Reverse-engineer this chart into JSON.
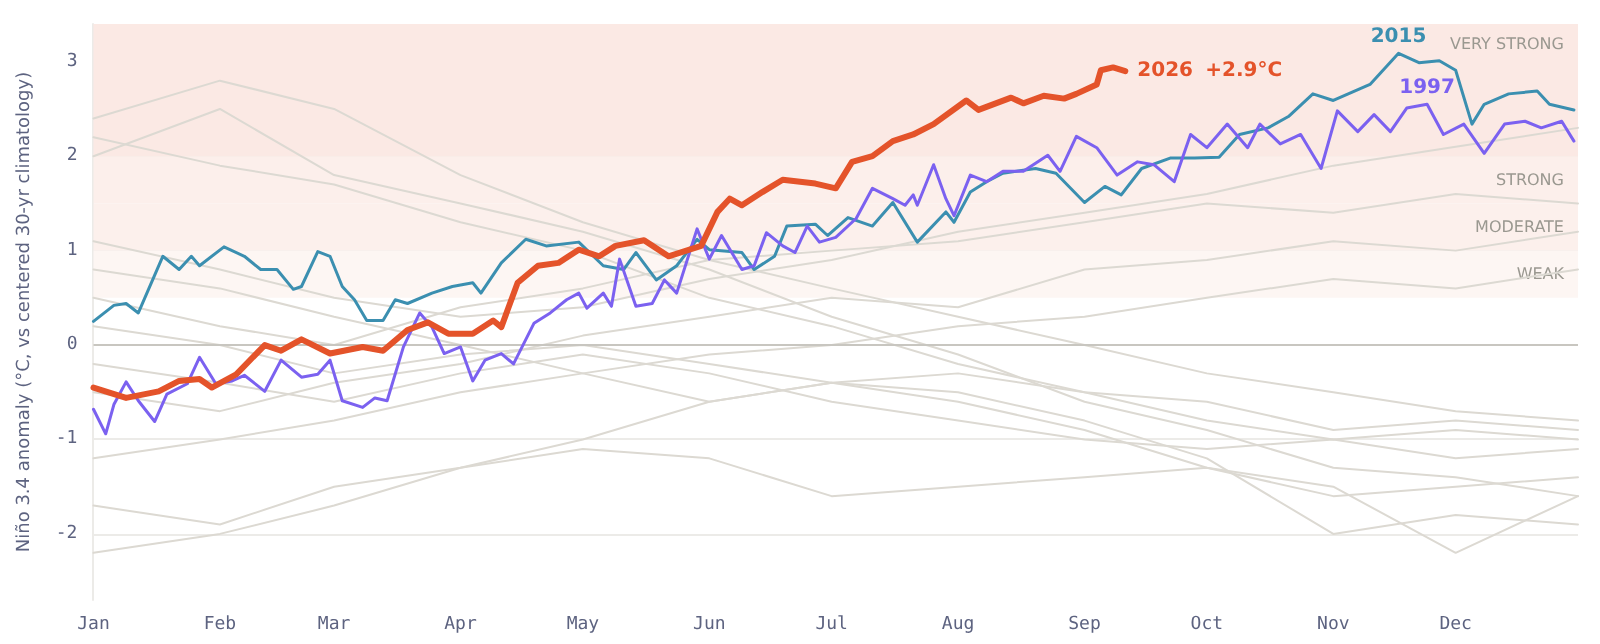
{
  "chart_data": {
    "type": "line",
    "ylabel": "Niño 3.4 anomaly (°C, vs centered 30-yr climatology)",
    "xlim": [
      "--01-01",
      "--12-31"
    ],
    "xticks": [
      {
        "value": "--01-01",
        "label": "Jan"
      },
      {
        "value": "--02-01",
        "label": "Feb"
      },
      {
        "value": "--03-01",
        "label": "Mar"
      },
      {
        "value": "--04-01",
        "label": "Apr"
      },
      {
        "value": "--05-01",
        "label": "May"
      },
      {
        "value": "--06-01",
        "label": "Jun"
      },
      {
        "value": "--07-01",
        "label": "Jul"
      },
      {
        "value": "--08-01",
        "label": "Aug"
      },
      {
        "value": "--09-01",
        "label": "Sep"
      },
      {
        "value": "--10-01",
        "label": "Oct"
      },
      {
        "value": "--11-01",
        "label": "Nov"
      },
      {
        "value": "--12-01",
        "label": "Dec"
      }
    ],
    "ylim": [
      -2.7,
      3.4
    ],
    "yticks": [
      -2,
      -1,
      0,
      1,
      2,
      3
    ],
    "grid": "y",
    "legend": false,
    "marker": "none",
    "line_style": "solid",
    "x": [
      "--01-01",
      "--02-01",
      "--03-01",
      "--04-01",
      "--05-01",
      "--06-01",
      "--07-01",
      "--08-01",
      "--09-01",
      "--10-01",
      "--11-01",
      "--12-01",
      "--12-31"
    ],
    "series": [
      {
        "color": "#dcd9d2",
        "values": [
          2.4,
          2.8,
          2.5,
          1.8,
          1.3,
          0.9,
          0.6,
          0.3,
          0.0,
          -0.3,
          -0.5,
          -0.7,
          -0.8
        ]
      },
      {
        "color": "#dcd9d2",
        "values": [
          2.2,
          1.9,
          1.7,
          1.3,
          1.0,
          0.5,
          0.2,
          -0.2,
          -0.5,
          -0.6,
          -0.9,
          -0.8,
          -0.9
        ]
      },
      {
        "color": "#dcd9d2",
        "values": [
          2.0,
          2.5,
          1.8,
          1.5,
          1.2,
          0.8,
          0.3,
          -0.1,
          -0.6,
          -0.9,
          -1.3,
          -1.4,
          -1.6
        ]
      },
      {
        "color": "#dcd9d2",
        "values": [
          1.1,
          0.8,
          0.5,
          0.3,
          0.4,
          0.7,
          0.9,
          1.2,
          1.4,
          1.6,
          1.9,
          2.1,
          2.3
        ]
      },
      {
        "color": "#dcd9d2",
        "values": [
          0.5,
          0.2,
          0.0,
          0.4,
          0.6,
          0.9,
          1.0,
          1.1,
          1.3,
          1.5,
          1.4,
          1.6,
          1.5
        ]
      },
      {
        "color": "#dcd9d2",
        "values": [
          -0.5,
          -0.7,
          -0.4,
          -0.2,
          0.1,
          0.3,
          0.5,
          0.4,
          0.8,
          0.9,
          1.1,
          1.0,
          1.2
        ]
      },
      {
        "color": "#dcd9d2",
        "values": [
          -1.2,
          -1.0,
          -0.8,
          -0.5,
          -0.3,
          -0.1,
          0.0,
          0.2,
          0.3,
          0.5,
          0.7,
          0.6,
          0.8
        ]
      },
      {
        "color": "#dcd9d2",
        "values": [
          -0.2,
          -0.4,
          -0.6,
          -0.3,
          -0.1,
          -0.3,
          -0.6,
          -0.8,
          -1.0,
          -1.1,
          -1.0,
          -1.2,
          -1.1
        ]
      },
      {
        "color": "#dcd9d2",
        "values": [
          -1.7,
          -1.9,
          -1.5,
          -1.3,
          -1.0,
          -0.6,
          -0.4,
          -0.3,
          -0.5,
          -0.8,
          -1.0,
          -0.9,
          -1.0
        ]
      },
      {
        "color": "#dcd9d2",
        "values": [
          -2.2,
          -2.0,
          -1.7,
          -1.3,
          -1.1,
          -1.2,
          -1.6,
          -1.5,
          -1.4,
          -1.3,
          -1.6,
          -1.5,
          -1.4
        ]
      },
      {
        "color": "#dcd9d2",
        "values": [
          0.2,
          0.0,
          -0.3,
          -0.1,
          0.0,
          -0.2,
          -0.4,
          -0.5,
          -0.8,
          -1.2,
          -2.0,
          -1.8,
          -1.9
        ]
      },
      {
        "color": "#dcd9d2",
        "values": [
          0.8,
          0.6,
          0.3,
          0.0,
          -0.3,
          -0.6,
          -0.4,
          -0.6,
          -0.9,
          -1.3,
          -1.5,
          -2.2,
          -1.6
        ]
      },
      {
        "name": "2015",
        "color": "#3b8fb0",
        "x": [
          "--01-01",
          "--01-06",
          "--01-09",
          "--01-12",
          "--01-18",
          "--01-22",
          "--01-25",
          "--01-27",
          "--02-02",
          "--02-07",
          "--02-11",
          "--02-15",
          "--02-19",
          "--02-21",
          "--02-25",
          "--02-28",
          "--03-03",
          "--03-06",
          "--03-09",
          "--03-13",
          "--03-16",
          "--03-19",
          "--03-25",
          "--03-30",
          "--04-04",
          "--04-06",
          "--04-11",
          "--04-17",
          "--04-22",
          "--04-30",
          "--05-06",
          "--05-11",
          "--05-14",
          "--05-19",
          "--05-24",
          "--05-29",
          "--06-01",
          "--06-09",
          "--06-12",
          "--06-17",
          "--06-20",
          "--06-27",
          "--06-30",
          "--07-05",
          "--07-11",
          "--07-16",
          "--07-22",
          "--07-29",
          "--07-31",
          "--08-04",
          "--08-08",
          "--08-12",
          "--08-20",
          "--08-25",
          "--09-01",
          "--09-06",
          "--09-10",
          "--09-15",
          "--09-22",
          "--09-28",
          "--10-04",
          "--10-09",
          "--10-16",
          "--10-21",
          "--10-27",
          "--11-01",
          "--11-10",
          "--11-17",
          "--11-22",
          "--11-27",
          "--12-01",
          "--12-05",
          "--12-08",
          "--12-14",
          "--12-21",
          "--12-24",
          "--12-30"
        ],
        "values": [
          0.25,
          0.42,
          0.44,
          0.34,
          0.94,
          0.8,
          0.94,
          0.84,
          1.04,
          0.94,
          0.8,
          0.8,
          0.59,
          0.62,
          0.99,
          0.94,
          0.62,
          0.48,
          0.26,
          0.26,
          0.48,
          0.44,
          0.55,
          0.62,
          0.66,
          0.55,
          0.87,
          1.12,
          1.05,
          1.09,
          0.84,
          0.8,
          0.98,
          0.69,
          0.84,
          1.12,
          1.01,
          0.98,
          0.8,
          0.94,
          1.26,
          1.28,
          1.16,
          1.35,
          1.26,
          1.51,
          1.09,
          1.41,
          1.3,
          1.62,
          1.73,
          1.82,
          1.87,
          1.82,
          1.51,
          1.68,
          1.59,
          1.87,
          1.98,
          1.98,
          1.99,
          2.23,
          2.3,
          2.42,
          2.66,
          2.59,
          2.76,
          3.09,
          2.99,
          3.01,
          2.91,
          2.34,
          2.55,
          2.66,
          2.69,
          2.55,
          2.49
        ]
      },
      {
        "name": "1997",
        "color": "#7b61f0",
        "x": [
          "--01-01",
          "--01-04",
          "--01-06",
          "--01-09",
          "--01-12",
          "--01-16",
          "--01-19",
          "--01-24",
          "--01-27",
          "--01-31",
          "--02-04",
          "--02-07",
          "--02-12",
          "--02-16",
          "--02-21",
          "--02-25",
          "--02-28",
          "--03-03",
          "--03-08",
          "--03-11",
          "--03-14",
          "--03-18",
          "--03-22",
          "--03-25",
          "--03-28",
          "--04-01",
          "--04-04",
          "--04-07",
          "--04-11",
          "--04-14",
          "--04-19",
          "--04-23",
          "--04-27",
          "--04-30",
          "--05-02",
          "--05-06",
          "--05-08",
          "--05-10",
          "--05-14",
          "--05-18",
          "--05-21",
          "--05-24",
          "--05-29",
          "--06-01",
          "--06-04",
          "--06-09",
          "--06-12",
          "--06-15",
          "--06-19",
          "--06-22",
          "--06-25",
          "--06-28",
          "--07-02",
          "--07-07",
          "--07-11",
          "--07-16",
          "--07-19",
          "--07-21",
          "--07-22",
          "--07-26",
          "--07-29",
          "--07-31",
          "--08-04",
          "--08-08",
          "--08-12",
          "--08-17",
          "--08-23",
          "--08-26",
          "--08-30",
          "--09-04",
          "--09-09",
          "--09-14",
          "--09-18",
          "--09-23",
          "--09-27",
          "--10-01",
          "--10-03",
          "--10-06",
          "--10-11",
          "--10-14",
          "--10-19",
          "--10-24",
          "--10-29",
          "--11-02",
          "--11-07",
          "--11-11",
          "--11-15",
          "--11-19",
          "--11-24",
          "--11-28",
          "--12-03",
          "--12-08",
          "--12-13",
          "--12-18",
          "--12-22",
          "--12-27",
          "--12-30"
        ],
        "values": [
          -0.68,
          -0.94,
          -0.63,
          -0.39,
          -0.59,
          -0.81,
          -0.52,
          -0.41,
          -0.13,
          -0.41,
          -0.38,
          -0.32,
          -0.49,
          -0.16,
          -0.34,
          -0.31,
          -0.16,
          -0.59,
          -0.66,
          -0.56,
          -0.59,
          -0.02,
          0.34,
          0.19,
          -0.09,
          -0.02,
          -0.38,
          -0.16,
          -0.09,
          -0.2,
          0.23,
          0.34,
          0.48,
          0.55,
          0.39,
          0.55,
          0.41,
          0.91,
          0.41,
          0.44,
          0.69,
          0.55,
          1.23,
          0.91,
          1.16,
          0.8,
          0.84,
          1.19,
          1.05,
          0.98,
          1.26,
          1.09,
          1.14,
          1.34,
          1.66,
          1.55,
          1.48,
          1.59,
          1.48,
          1.91,
          1.55,
          1.37,
          1.8,
          1.73,
          1.84,
          1.84,
          2.01,
          1.84,
          2.21,
          2.09,
          1.8,
          1.94,
          1.91,
          1.73,
          2.23,
          2.09,
          2.19,
          2.34,
          2.09,
          2.34,
          2.13,
          2.23,
          1.87,
          2.48,
          2.26,
          2.44,
          2.26,
          2.51,
          2.55,
          2.23,
          2.34,
          2.03,
          2.34,
          2.37,
          2.3,
          2.37,
          2.16
        ]
      },
      {
        "name": "2026",
        "color": "#e4532a",
        "x": [
          "--01-01",
          "--01-09",
          "--01-17",
          "--01-22",
          "--01-27",
          "--01-30",
          "--02-05",
          "--02-12",
          "--02-16",
          "--02-21",
          "--02-28",
          "--03-08",
          "--03-13",
          "--03-19",
          "--03-24",
          "--03-29",
          "--04-04",
          "--04-09",
          "--04-11",
          "--04-15",
          "--04-20",
          "--04-25",
          "--04-30",
          "--05-05",
          "--05-09",
          "--05-16",
          "--05-22",
          "--05-30",
          "--06-03",
          "--06-06",
          "--06-09",
          "--06-14",
          "--06-19",
          "--06-27",
          "--07-02",
          "--07-06",
          "--07-11",
          "--07-16",
          "--07-21",
          "--07-26",
          "--08-03",
          "--08-06",
          "--08-14",
          "--08-17",
          "--08-22",
          "--08-27",
          "--08-30",
          "--09-04",
          "--09-05",
          "--09-08",
          "--09-11"
        ],
        "values": [
          -0.45,
          -0.56,
          -0.49,
          -0.38,
          -0.36,
          -0.45,
          -0.31,
          0,
          -0.06,
          0.06,
          -0.09,
          -0.02,
          -0.06,
          0.16,
          0.24,
          0.12,
          0.12,
          0.26,
          0.19,
          0.66,
          0.84,
          0.87,
          1.01,
          0.94,
          1.05,
          1.11,
          0.94,
          1.05,
          1.41,
          1.55,
          1.48,
          1.62,
          1.75,
          1.71,
          1.66,
          1.94,
          2.0,
          2.16,
          2.23,
          2.34,
          2.59,
          2.49,
          2.62,
          2.56,
          2.64,
          2.61,
          2.66,
          2.76,
          2.91,
          2.94,
          2.9
        ]
      }
    ],
    "ref_lines": [
      {
        "axis": "y",
        "value": 0,
        "color": "#c8c6c0"
      }
    ],
    "bands": [
      {
        "axis": "y",
        "from": 0.5,
        "to": 1,
        "label": "WEAK",
        "color": "#fdf6f3"
      },
      {
        "axis": "y",
        "from": 1,
        "to": 1.5,
        "label": "MODERATE",
        "color": "#fcf0ec"
      },
      {
        "axis": "y",
        "from": 1.5,
        "to": 2,
        "label": "STRONG",
        "color": "#fcefeb"
      },
      {
        "axis": "y",
        "from": 2,
        "to": 3.4,
        "label": "VERY STRONG",
        "color": "#fbe9e4"
      }
    ],
    "annotations": [
      "+2.9°C"
    ]
  }
}
